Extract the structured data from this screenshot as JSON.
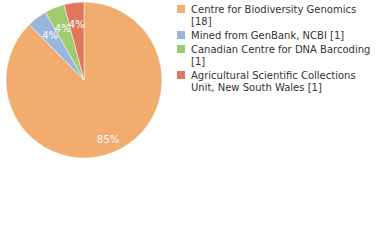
{
  "chart_data": {
    "type": "pie",
    "categories": [
      "Centre for Biodiversity Genomics [18]",
      "Mined from GenBank, NCBI [1]",
      "Canadian Centre for DNA Barcoding [1]",
      "Agricultural Scientific Collections Unit, New South Wales [1]"
    ],
    "values": [
      85,
      4,
      4,
      4
    ],
    "value_labels": [
      "85%",
      "4%",
      "4%",
      "4%"
    ],
    "colors": [
      "#f2ac6e",
      "#9bb5dc",
      "#9fcc6f",
      "#e0775c"
    ],
    "data_labels": true,
    "legend": "top-right"
  }
}
